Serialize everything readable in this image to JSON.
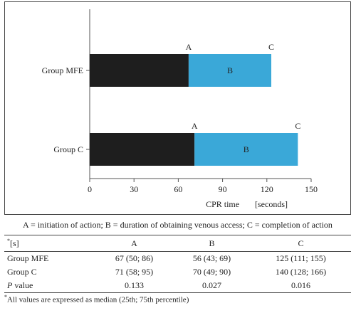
{
  "chart_data": {
    "type": "bar",
    "orientation": "horizontal",
    "stacked": true,
    "categories": [
      "Group MFE",
      "Group C"
    ],
    "series": [
      {
        "name": "A",
        "values": [
          67,
          71
        ],
        "color": "#1e1e1e"
      },
      {
        "name": "B",
        "values": [
          56,
          70
        ],
        "color": "#3aa8d8"
      }
    ],
    "segment_labels": [
      "A",
      "B",
      "C"
    ],
    "xlabel": "CPR time",
    "xunit": "[seconds]",
    "xlim": [
      0,
      150
    ],
    "xticks": [
      0,
      30,
      60,
      90,
      120,
      150
    ]
  },
  "legend_note": "A = initiation of action; B = duration of obtaining venous access; C = completion of action",
  "table": {
    "header_sup": "*",
    "header_first": "[s]",
    "columns": [
      "A",
      "B",
      "C"
    ],
    "rows": [
      {
        "label": "Group MFE",
        "label_sup": "",
        "label_tail": "",
        "cells": [
          "67 (50; 86)",
          "56 (43; 69)",
          "125 (111; 155)"
        ]
      },
      {
        "label": "Group C",
        "label_sup": "",
        "label_tail": "",
        "cells": [
          "71 (58; 95)",
          "70 (49; 90)",
          "140 (128; 166)"
        ]
      },
      {
        "label": "P",
        "label_sup": "",
        "label_tail": " value",
        "cells": [
          "0.133",
          "0.027",
          "0.016"
        ]
      }
    ]
  },
  "footnote": {
    "sup": "*",
    "text": "All values are expressed as median (25th; 75th percentile)"
  }
}
